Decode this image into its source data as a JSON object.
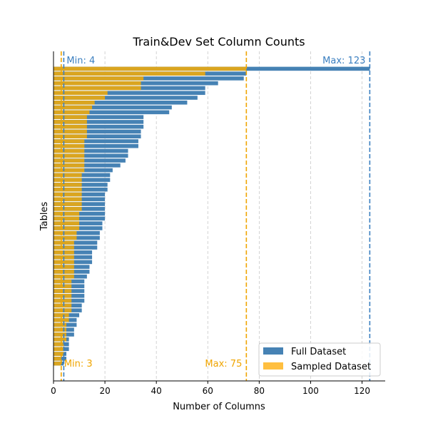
{
  "chart_data": {
    "type": "bar",
    "orientation": "horizontal",
    "title": "Train&Dev Set Column Counts",
    "xlabel": "Number of Columns",
    "ylabel": "Tables",
    "xlim": [
      0,
      129
    ],
    "xticks": [
      0,
      20,
      40,
      60,
      80,
      100,
      120
    ],
    "grid": "vertical dashed",
    "legend_position": "bottom-right",
    "series": [
      {
        "name": "Full Dataset",
        "color": "#4682b4",
        "values": [
          123,
          75,
          74,
          64,
          59,
          59,
          56,
          52,
          46,
          45,
          35,
          35,
          35,
          34,
          34,
          33,
          33,
          29,
          29,
          28,
          26,
          23,
          22,
          22,
          21,
          21,
          20,
          20,
          20,
          20,
          20,
          20,
          19,
          19,
          18,
          18,
          17,
          17,
          15,
          15,
          15,
          14,
          14,
          13,
          12,
          12,
          12,
          12,
          12,
          11,
          11,
          10,
          9,
          9,
          8,
          8,
          6,
          6,
          6,
          5,
          5,
          4
        ]
      },
      {
        "name": "Sampled Dataset",
        "color": "#daa520",
        "values": [
          75,
          59,
          35,
          34,
          34,
          21,
          20,
          16,
          15,
          14,
          13,
          13,
          13,
          13,
          13,
          12,
          12,
          12,
          12,
          12,
          12,
          12,
          11,
          11,
          11,
          11,
          11,
          11,
          11,
          11,
          10,
          10,
          10,
          10,
          9,
          9,
          8,
          8,
          8,
          8,
          8,
          8,
          8,
          8,
          7,
          7,
          7,
          7,
          7,
          7,
          7,
          6,
          6,
          5,
          5,
          5,
          5,
          4,
          4,
          4,
          3,
          3
        ]
      }
    ],
    "reference_lines": [
      {
        "series": "Full Dataset",
        "kind": "min",
        "value": 4,
        "label": "Min: 4",
        "color": "#3b7fc0"
      },
      {
        "series": "Full Dataset",
        "kind": "max",
        "value": 123,
        "label": "Max: 123",
        "color": "#3b7fc0"
      },
      {
        "series": "Sampled Dataset",
        "kind": "min",
        "value": 3,
        "label": "Min: 3",
        "color": "#f0a500"
      },
      {
        "series": "Sampled Dataset",
        "kind": "max",
        "value": 75,
        "label": "Max: 75",
        "color": "#f0a500"
      }
    ],
    "legend": [
      {
        "label": "Full Dataset",
        "color": "#4682b4"
      },
      {
        "label": "Sampled Dataset",
        "color": "#ffbf40"
      }
    ]
  }
}
